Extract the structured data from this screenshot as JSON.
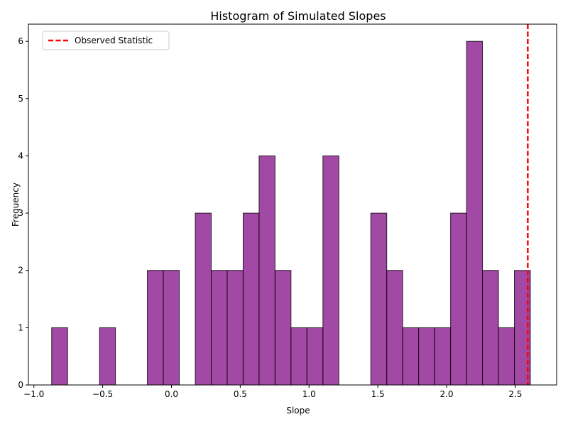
{
  "chart_data": {
    "type": "bar",
    "title": "Histogram of Simulated Slopes",
    "xlabel": "Slope",
    "ylabel": "Frequency",
    "xlim": [
      -1.04,
      2.8
    ],
    "ylim": [
      0,
      6.3
    ],
    "x_ticks": [
      -1.0,
      -0.5,
      0.0,
      0.5,
      1.0,
      1.5,
      2.0,
      2.5
    ],
    "x_tick_labels": [
      "−1.0",
      "−0.5",
      "0.0",
      "0.5",
      "1.0",
      "1.5",
      "2.0",
      "2.5"
    ],
    "y_ticks": [
      0,
      1,
      2,
      3,
      4,
      5,
      6
    ],
    "y_tick_labels": [
      "0",
      "1",
      "2",
      "3",
      "4",
      "5",
      "6"
    ],
    "bin_edges": [
      -0.871,
      -0.755,
      -0.639,
      -0.523,
      -0.407,
      -0.291,
      -0.175,
      -0.059,
      0.057,
      0.173,
      0.289,
      0.405,
      0.521,
      0.637,
      0.753,
      0.869,
      0.985,
      1.101,
      1.217,
      1.333,
      1.449,
      1.565,
      1.681,
      1.797,
      1.913,
      2.029,
      2.145,
      2.261,
      2.377,
      2.493,
      2.609
    ],
    "counts": [
      1,
      0,
      0,
      1,
      0,
      0,
      2,
      2,
      0,
      3,
      2,
      2,
      3,
      4,
      2,
      1,
      1,
      4,
      0,
      0,
      3,
      2,
      1,
      1,
      1,
      3,
      6,
      2,
      1,
      2
    ],
    "bar_color": "#8B1A8F",
    "bar_edge_color": "#000000",
    "observed_statistic": 2.59,
    "observed_color": "#ff0000",
    "legend": {
      "label": "Observed Statistic",
      "placement": "top-left"
    },
    "grid": false
  }
}
